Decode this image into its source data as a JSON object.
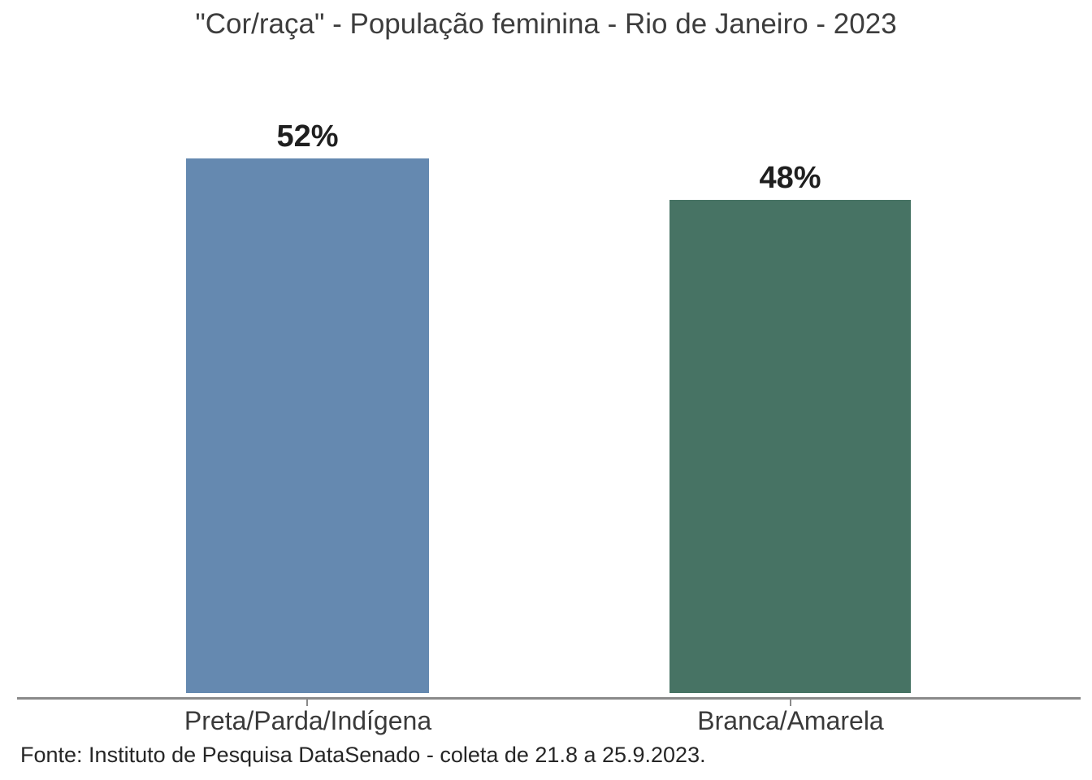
{
  "chart_data": {
    "type": "bar",
    "title": "\"Cor/raça\" - População feminina - Rio de Janeiro - 2023",
    "categories": [
      "Preta/Parda/Indígena",
      "Branca/Amarela"
    ],
    "values": [
      52,
      48
    ],
    "value_labels": [
      "52%",
      "48%"
    ],
    "value_suffix": "%",
    "series": [
      {
        "name": "População feminina",
        "values": [
          52,
          48
        ]
      }
    ],
    "colors": [
      "#6589B0",
      "#477364"
    ],
    "xlabel": "",
    "ylabel": "",
    "ylim": [
      0,
      67
    ],
    "grid": false,
    "legend": false,
    "axis_color": "#8a8a8a",
    "source": "Fonte: Instituto de Pesquisa DataSenado - coleta de 21.8 a 25.9.2023."
  }
}
